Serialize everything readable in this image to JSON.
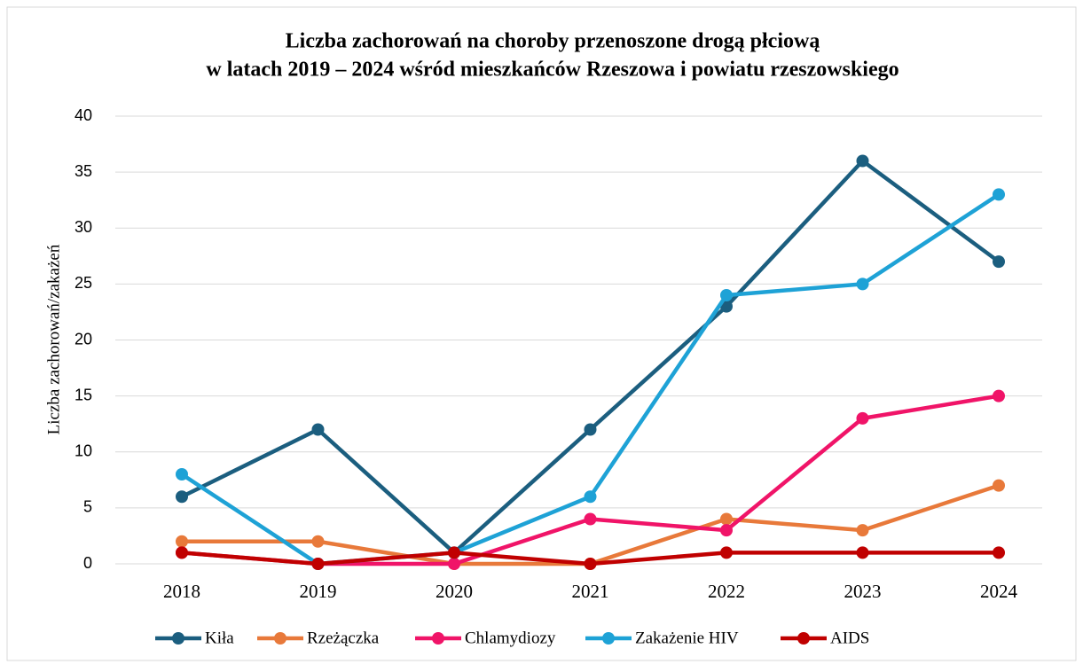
{
  "chart_data": {
    "type": "line",
    "title": [
      "Liczba zachorowań na choroby przenoszone drogą płciową",
      "w latach 2019 – 2024 wśród mieszkańców Rzeszowa i powiatu rzeszowskiego"
    ],
    "y_label": "Liczba zachorowań/zakażeń",
    "categories": [
      "2018",
      "2019",
      "2020",
      "2021",
      "2022",
      "2023",
      "2024"
    ],
    "series": [
      {
        "name": "Kiła",
        "color": "#1b5e7f",
        "values": [
          6,
          12,
          1,
          12,
          23,
          36,
          27
        ]
      },
      {
        "name": "Rzeżączka",
        "color": "#e8793a",
        "values": [
          2,
          2,
          0,
          0,
          4,
          3,
          7
        ]
      },
      {
        "name": "Chlamydiozy",
        "color": "#f01468",
        "values": [
          1,
          0,
          0,
          4,
          3,
          13,
          15
        ]
      },
      {
        "name": "Zakażenie HIV",
        "color": "#1ea2d6",
        "values": [
          8,
          0,
          1,
          6,
          24,
          25,
          33
        ]
      },
      {
        "name": "AIDS",
        "color": "#c00000",
        "values": [
          1,
          0,
          1,
          0,
          1,
          1,
          1
        ]
      }
    ],
    "ylim": [
      0,
      40
    ],
    "yticks": [
      0,
      5,
      10,
      15,
      20,
      25,
      30,
      35,
      40
    ],
    "grid": true,
    "legend": "bottom"
  }
}
